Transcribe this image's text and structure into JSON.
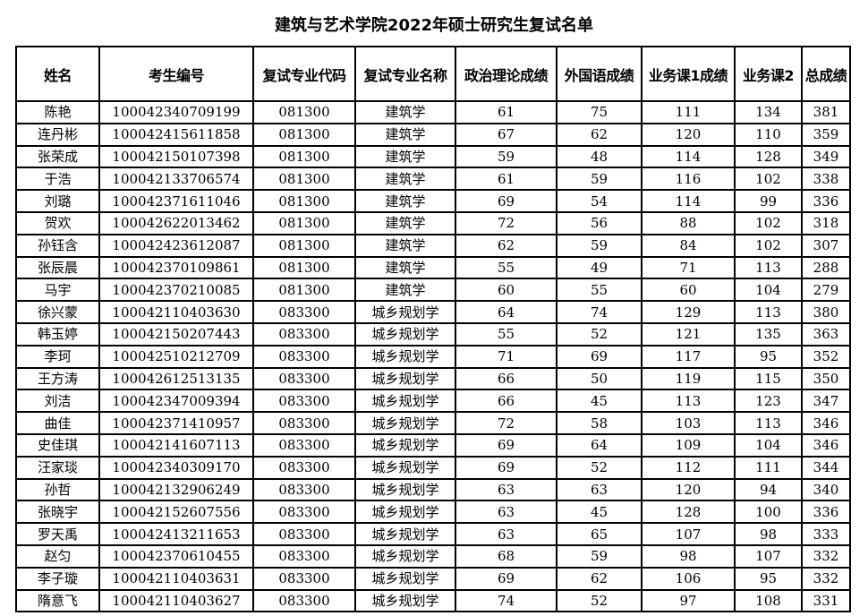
{
  "title": "建筑与艺术学院2022年硕士研究生复试名单",
  "columns": [
    "姓名",
    "考生编号",
    "复试专业代码",
    "复试专业名称",
    "政治理论成绩",
    "外国语成绩",
    "业务课1成绩",
    "业务课2",
    "总成绩"
  ],
  "rows": [
    [
      "陈艳",
      "100042340709199",
      "081300",
      "建筑学",
      "61",
      "75",
      "111",
      "134",
      "381"
    ],
    [
      "连丹彬",
      "100042415611858",
      "081300",
      "建筑学",
      "67",
      "62",
      "120",
      "110",
      "359"
    ],
    [
      "张荣成",
      "100042150107398",
      "081300",
      "建筑学",
      "59",
      "48",
      "114",
      "128",
      "349"
    ],
    [
      "于浩",
      "100042133706574",
      "081300",
      "建筑学",
      "61",
      "59",
      "116",
      "102",
      "338"
    ],
    [
      "刘璐",
      "100042371611046",
      "081300",
      "建筑学",
      "69",
      "54",
      "114",
      "99",
      "336"
    ],
    [
      "贺欢",
      "100042622013462",
      "081300",
      "建筑学",
      "72",
      "56",
      "88",
      "102",
      "318"
    ],
    [
      "孙钰含",
      "100042423612087",
      "081300",
      "建筑学",
      "62",
      "59",
      "84",
      "102",
      "307"
    ],
    [
      "张辰晨",
      "100042370109861",
      "081300",
      "建筑学",
      "55",
      "49",
      "71",
      "113",
      "288"
    ],
    [
      "马宇",
      "100042370210085",
      "081300",
      "建筑学",
      "60",
      "55",
      "60",
      "104",
      "279"
    ],
    [
      "徐兴蒙",
      "100042110403630",
      "083300",
      "城乡规划学",
      "64",
      "74",
      "129",
      "113",
      "380"
    ],
    [
      "韩玉婷",
      "100042150207443",
      "083300",
      "城乡规划学",
      "55",
      "52",
      "121",
      "135",
      "363"
    ],
    [
      "李珂",
      "100042510212709",
      "083300",
      "城乡规划学",
      "71",
      "69",
      "117",
      "95",
      "352"
    ],
    [
      "王方涛",
      "100042612513135",
      "083300",
      "城乡规划学",
      "66",
      "50",
      "119",
      "115",
      "350"
    ],
    [
      "刘洁",
      "100042347009394",
      "083300",
      "城乡规划学",
      "66",
      "45",
      "113",
      "123",
      "347"
    ],
    [
      "曲佳",
      "100042371410957",
      "083300",
      "城乡规划学",
      "72",
      "58",
      "103",
      "113",
      "346"
    ],
    [
      "史佳琪",
      "100042141607113",
      "083300",
      "城乡规划学",
      "69",
      "64",
      "109",
      "104",
      "346"
    ],
    [
      "汪家琰",
      "100042340309170",
      "083300",
      "城乡规划学",
      "69",
      "52",
      "112",
      "111",
      "344"
    ],
    [
      "孙哲",
      "100042132906249",
      "083300",
      "城乡规划学",
      "63",
      "63",
      "120",
      "94",
      "340"
    ],
    [
      "张晓宇",
      "100042152607556",
      "083300",
      "城乡规划学",
      "63",
      "45",
      "128",
      "100",
      "336"
    ],
    [
      "罗天禹",
      "100042413211653",
      "083300",
      "城乡规划学",
      "63",
      "65",
      "107",
      "98",
      "333"
    ],
    [
      "赵匀",
      "100042370610455",
      "083300",
      "城乡规划学",
      "68",
      "59",
      "98",
      "107",
      "332"
    ],
    [
      "李子璇",
      "100042110403631",
      "083300",
      "城乡规划学",
      "69",
      "62",
      "106",
      "95",
      "332"
    ],
    [
      "隋意飞",
      "100042110403627",
      "083300",
      "城乡规划学",
      "74",
      "52",
      "97",
      "108",
      "331"
    ]
  ]
}
